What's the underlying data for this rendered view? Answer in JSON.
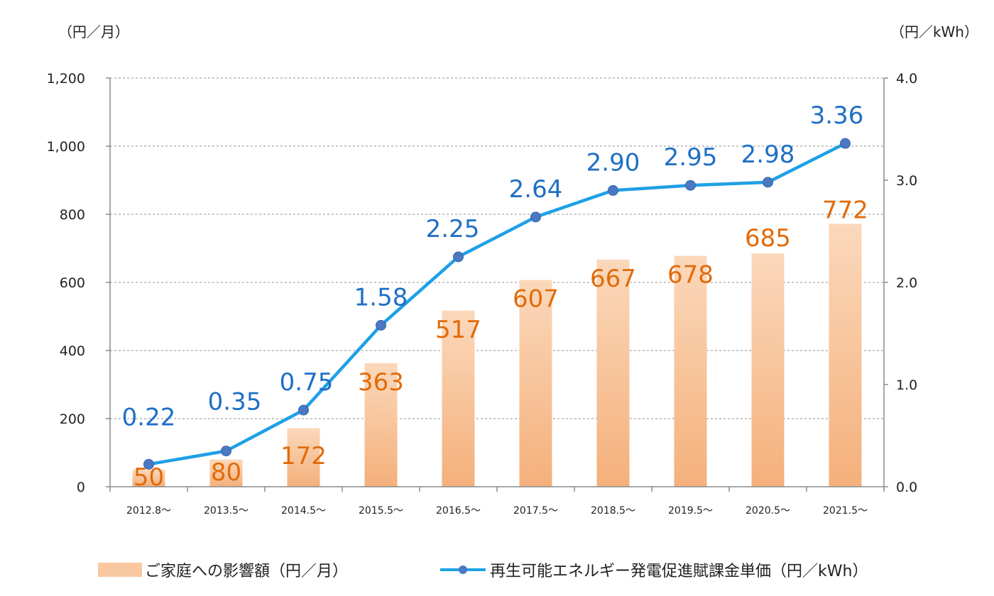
{
  "chart_data": {
    "type": "bar",
    "categories": [
      "2012.8～",
      "2013.5～",
      "2014.5～",
      "2015.5～",
      "2016.5～",
      "2017.5～",
      "2018.5～",
      "2019.5～",
      "2020.5～",
      "2021.5～"
    ],
    "series": [
      {
        "name": "ご家庭への影響額（円／月）",
        "type": "bar",
        "axis": "left",
        "values": [
          50,
          80,
          172,
          363,
          517,
          607,
          667,
          678,
          685,
          772
        ],
        "color": "#f8c9a0"
      },
      {
        "name": "再生可能エネルギー発電促進賦課金単価（円／kWh）",
        "type": "line",
        "axis": "right",
        "values": [
          0.22,
          0.35,
          0.75,
          1.58,
          2.25,
          2.64,
          2.9,
          2.95,
          2.98,
          3.36
        ],
        "color": "#1ea0e6",
        "label_color": "#1f6fc5"
      }
    ],
    "y_left": {
      "unit": "（円／月）",
      "lim": [
        0,
        1200
      ],
      "ticks": [
        0,
        200,
        400,
        600,
        800,
        1000,
        1200
      ],
      "tick_labels": [
        "0",
        "200",
        "400",
        "600",
        "800",
        "1,000",
        "1,200"
      ]
    },
    "y_right": {
      "unit": "（円／kWh）",
      "lim": [
        0,
        4
      ],
      "ticks": [
        0,
        1,
        2,
        3,
        4
      ],
      "tick_labels": [
        "0.0",
        "1.0",
        "2.0",
        "3.0",
        "4.0"
      ]
    },
    "bar_labels": [
      "50",
      "80",
      "172",
      "363",
      "517",
      "607",
      "667",
      "678",
      "685",
      "772"
    ],
    "line_labels": [
      "0.22",
      "0.35",
      "0.75",
      "1.58",
      "2.25",
      "2.64",
      "2.90",
      "2.95",
      "2.98",
      "3.36"
    ],
    "grid": true,
    "legend_position": "bottom"
  }
}
